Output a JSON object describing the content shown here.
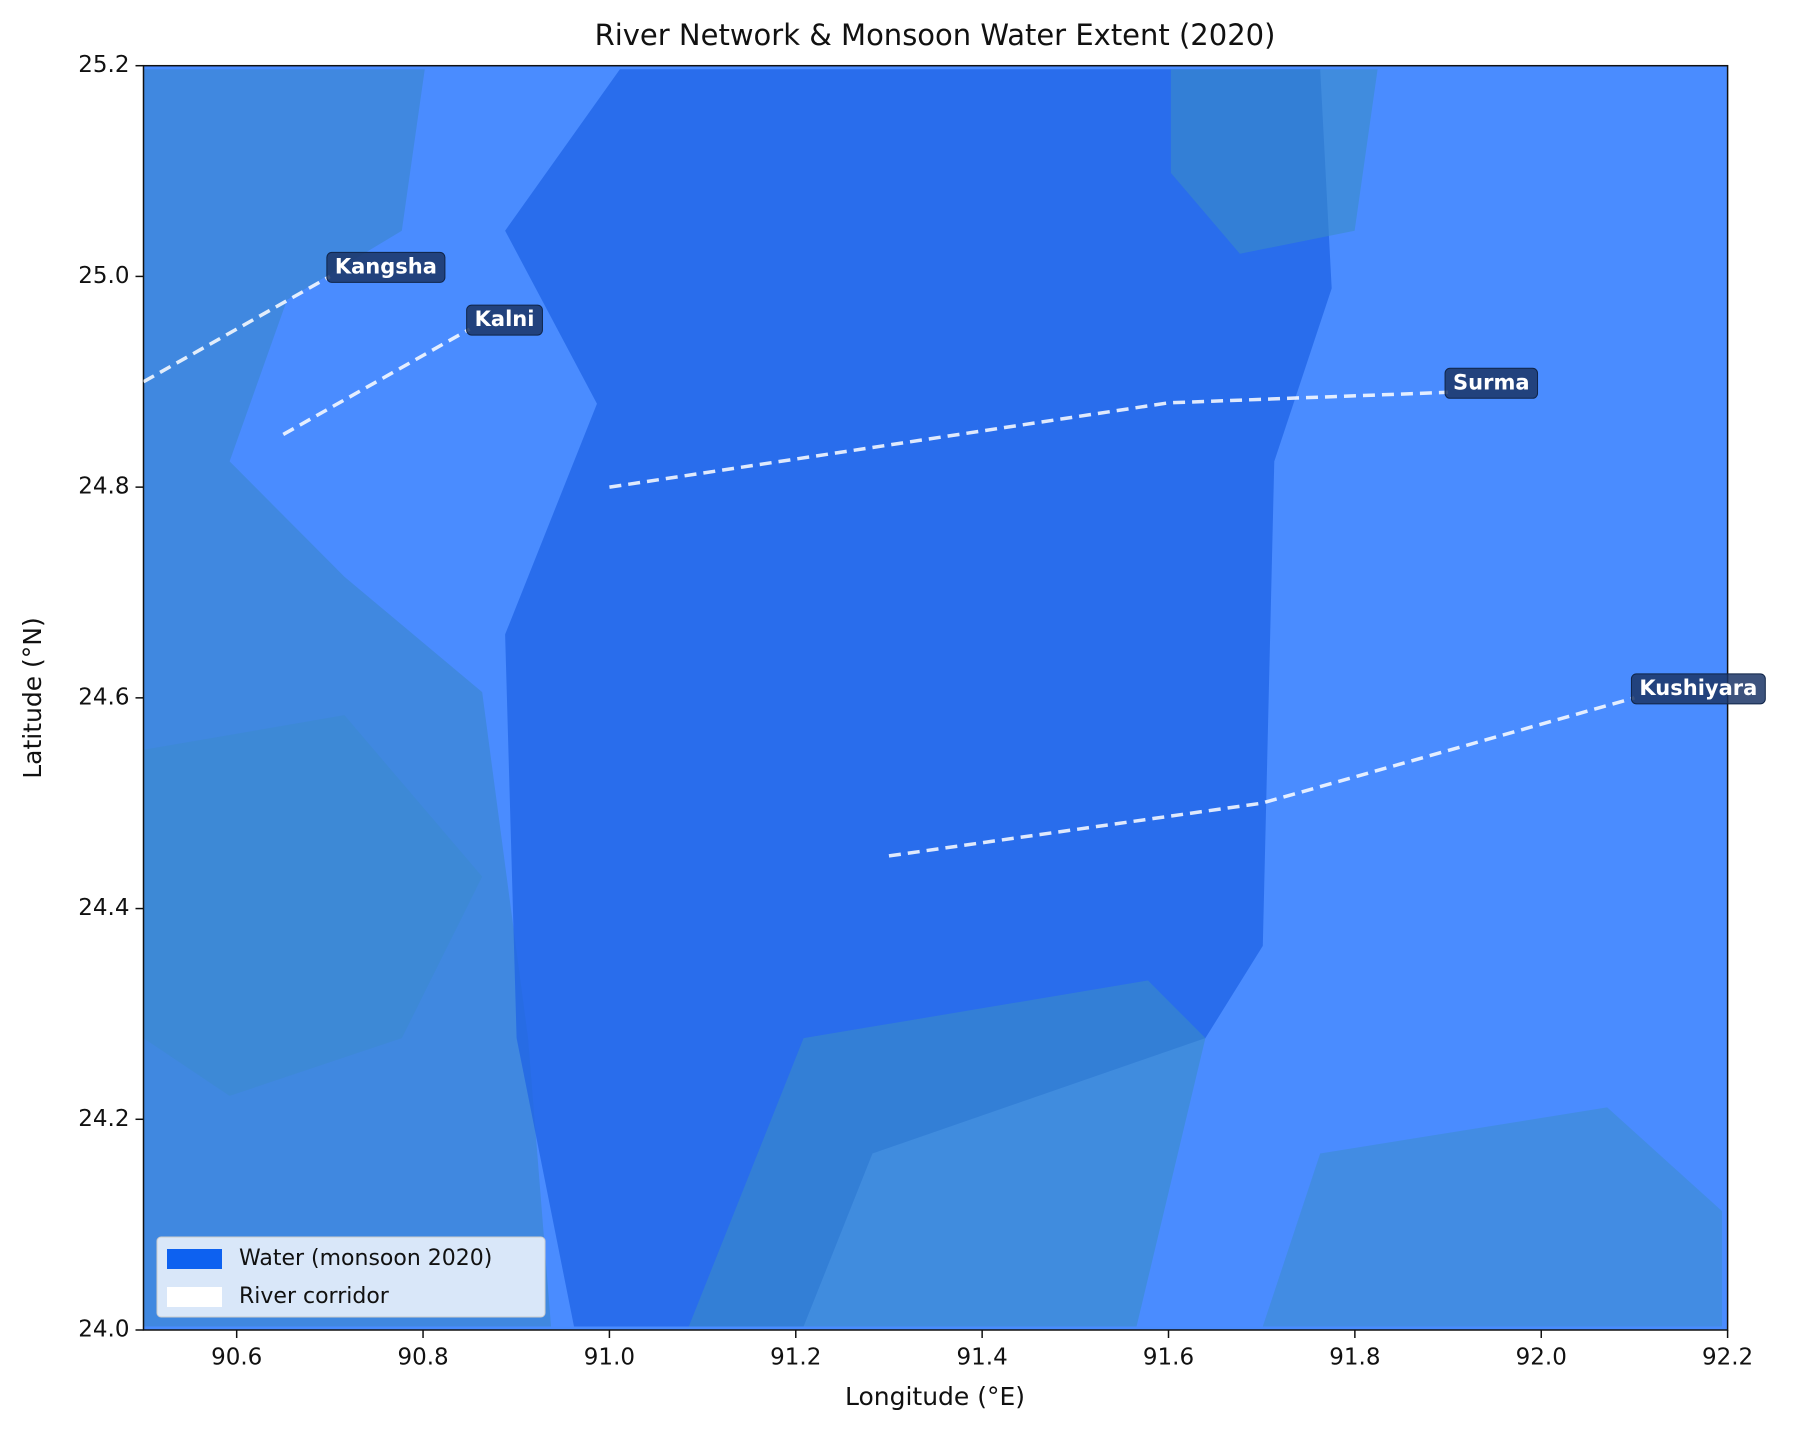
{
  "chart_data": {
    "type": "line",
    "title": "River Network & Monsoon Water Extent (2020)",
    "x_label": "Longitude (°E)",
    "y_label": "Latitude (°N)",
    "xlim": [
      90.5,
      92.2
    ],
    "ylim": [
      24.0,
      25.2
    ],
    "xticks": [
      90.6,
      90.8,
      {
        "value": 91.0,
        "label": "91.0"
      },
      91.2,
      91.4,
      91.6,
      91.8,
      {
        "value": 92.0,
        "label": "92.0"
      },
      92.2
    ],
    "yticks": [
      {
        "value": 24.0,
        "label": "24.0"
      },
      24.2,
      24.4,
      24.6,
      24.8,
      {
        "value": 25.0,
        "label": "25.0"
      },
      25.2
    ],
    "series": [
      {
        "name": "Kangsha",
        "color": "#ffffff",
        "x": [
          90.5,
          90.7
        ],
        "y": [
          24.9,
          25.0
        ]
      },
      {
        "name": "Kalni",
        "color": "#ffffff",
        "x": [
          90.65,
          90.75,
          90.85
        ],
        "y": [
          24.85,
          24.9,
          24.95
        ]
      },
      {
        "name": "Surma",
        "color": "#ffffff",
        "x": [
          91.0,
          91.3,
          91.6,
          91.9
        ],
        "y": [
          24.8,
          24.84,
          24.88,
          24.89
        ]
      },
      {
        "name": "Kushiyara",
        "color": "#ffffff",
        "x": [
          91.3,
          91.7,
          92.1
        ],
        "y": [
          24.45,
          24.5,
          24.6
        ]
      }
    ],
    "legend": {
      "corner": "lower left",
      "items": [
        {
          "name": "Water (monsoon 2020)",
          "color": "#0d61f0"
        },
        {
          "name": "River corridor",
          "color": "#ffffff"
        }
      ]
    }
  }
}
